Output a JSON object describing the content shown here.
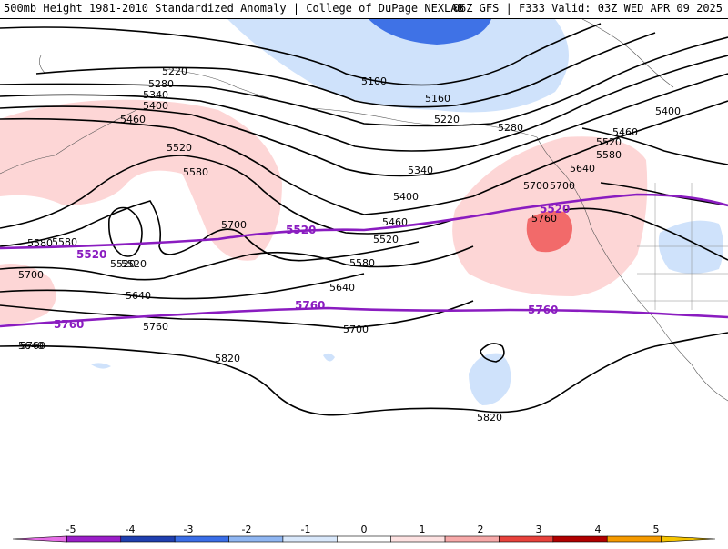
{
  "header": {
    "left_title": "500mb Height 1981-2010 Standardized Anomaly | College of DuPage NEXLAB",
    "right_title": "06Z GFS | F333 Valid: 03Z WED APR 09 2025"
  },
  "contours": {
    "black_labels": [
      "5220",
      "5280",
      "5340",
      "5400",
      "5460",
      "5520",
      "5580",
      "5700",
      "5100",
      "5160",
      "5220",
      "5280",
      "5340",
      "5400",
      "5460",
      "5520",
      "5580",
      "5640",
      "5700",
      "5760",
      "5820",
      "5520",
      "5580",
      "5640",
      "5700",
      "5760",
      "5820",
      "5400",
      "5460",
      "5520",
      "5580",
      "5640",
      "5700",
      "5580",
      "5520",
      "5640",
      "5700",
      "5760"
    ],
    "purple_labels": [
      "5520",
      "5520",
      "5520",
      "5760",
      "5760",
      "5760"
    ]
  },
  "colorbar": {
    "ticks": [
      "-5",
      "-4",
      "-3",
      "-2",
      "-1",
      "0",
      "1",
      "2",
      "3",
      "4",
      "5"
    ],
    "colors": [
      "#e66ee6",
      "#9b1ec8",
      "#1f3fb0",
      "#3a6ee8",
      "#8fb6f2",
      "#d9e8fb",
      "#ffffff",
      "#fde1e1",
      "#f7a9a9",
      "#e8423c",
      "#b00000",
      "#f59a00",
      "#f5c400"
    ]
  }
}
